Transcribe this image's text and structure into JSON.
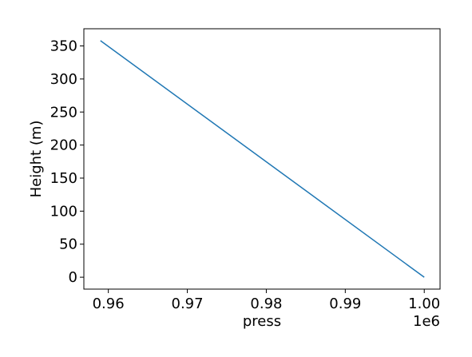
{
  "chart_data": {
    "type": "line",
    "title": "",
    "xlabel": "press",
    "ylabel": "Height (m)",
    "x_offset_label": "1e6",
    "xlim": [
      0.9569,
      1.002
    ],
    "ylim": [
      -18,
      376
    ],
    "x_ticks": [
      0.96,
      0.97,
      0.98,
      0.99,
      1.0
    ],
    "x_tick_labels": [
      "0.96",
      "0.97",
      "0.98",
      "0.99",
      "1.00"
    ],
    "y_ticks": [
      0,
      50,
      100,
      150,
      200,
      250,
      300,
      350
    ],
    "y_tick_labels": [
      "0",
      "50",
      "100",
      "150",
      "200",
      "250",
      "300",
      "350"
    ],
    "grid": false,
    "series": [
      {
        "color": "#1f77b4",
        "x": [
          0.959,
          1.0
        ],
        "y": [
          358,
          0
        ]
      }
    ]
  }
}
